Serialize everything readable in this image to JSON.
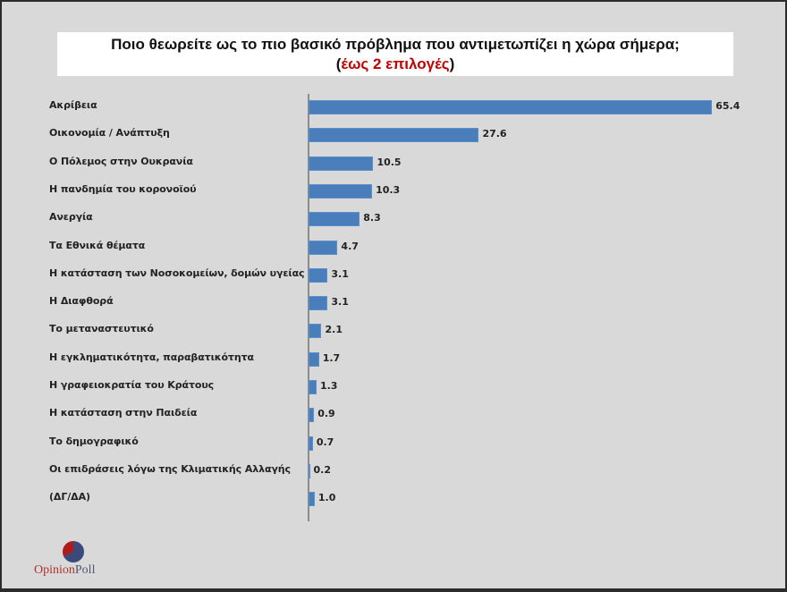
{
  "chart_data": {
    "type": "bar",
    "orientation": "horizontal",
    "title": "Ποιο θεωρείτε ως το πιο βασικό πρόβλημα που αντιμετωπίζει η χώρα σήμερα;",
    "subtitle": "(έως 2 επιλογές)",
    "xlabel": "",
    "ylabel": "",
    "grid": false,
    "legend": null,
    "categories": [
      "Ακρίβεια",
      "Οικονομία / Ανάπτυξη",
      "Ο Πόλεμος στην Ουκρανία",
      "Η πανδημία του κορονοϊού",
      "Ανεργία",
      "Τα Εθνικά θέματα",
      "Η κατάσταση των Νοσοκομείων, δομών υγείας",
      "Η Διαφθορά",
      "Το μεταναστευτικό",
      "Η εγκληματικότητα, παραβατικότητα",
      "Η γραφειοκρατία του Κράτους",
      "Η κατάσταση στην Παιδεία",
      "Το δημογραφικό",
      "Οι επιδράσεις λόγω της Κλιματικής Αλλαγής",
      "(ΔΓ/ΔΑ)"
    ],
    "values": [
      65.4,
      27.6,
      10.5,
      10.3,
      8.3,
      4.7,
      3.1,
      3.1,
      2.1,
      1.7,
      1.3,
      0.9,
      0.7,
      0.2,
      1.0
    ],
    "value_labels": [
      "65.4",
      "27.6",
      "10.5",
      "10.3",
      "8.3",
      "4.7",
      "3.1",
      "3.1",
      "2.1",
      "1.7",
      "1.3",
      "0.9",
      "0.7",
      "0.2",
      "1.0"
    ],
    "xlim": [
      0,
      70
    ],
    "bar_color": "#4a7ebb"
  },
  "header": {
    "title_line1": "Ποιο θεωρείτε ως το πιο βασικό πρόβλημα που αντιμετωπίζει η χώρα σήμερα;",
    "subtitle_open": "(",
    "subtitle_red": "έως 2 επιλογές",
    "subtitle_close": ")",
    "subtitle_color": "#c00000"
  },
  "logo": {
    "part1": "Opinion",
    "part2": "Poll"
  }
}
